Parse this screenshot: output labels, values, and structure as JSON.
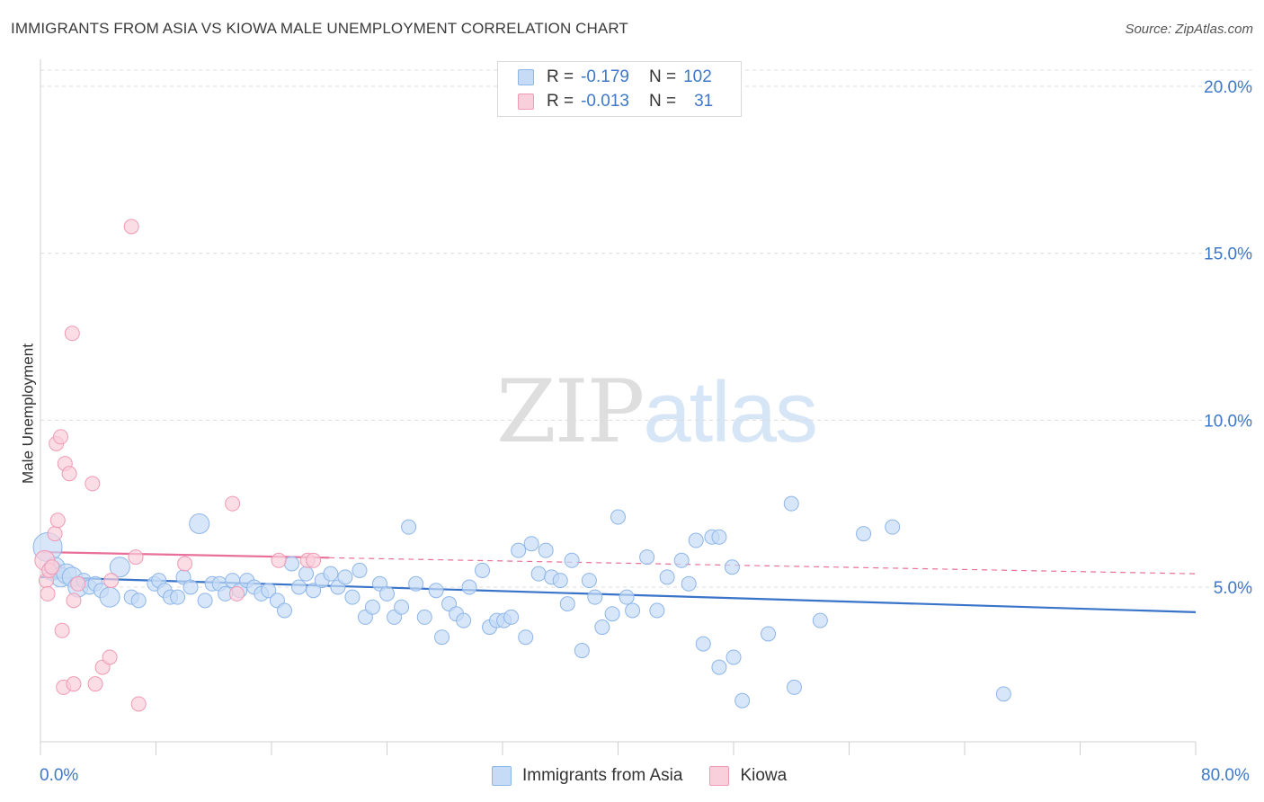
{
  "header": {
    "title": "IMMIGRANTS FROM ASIA VS KIOWA MALE UNEMPLOYMENT CORRELATION CHART",
    "source": "Source: ZipAtlas.com"
  },
  "legend_top": {
    "rows": [
      {
        "r_label": "R =",
        "r_value": "-0.179",
        "n_label": "N =",
        "n_value": "102"
      },
      {
        "r_label": "R =",
        "r_value": "-0.013",
        "n_label": "N =",
        "n_value": "31"
      }
    ]
  },
  "legend_bottom": {
    "items": [
      {
        "label": "Immigrants from Asia"
      },
      {
        "label": "Kiowa"
      }
    ]
  },
  "watermark": {
    "zip": "ZIP",
    "atlas": "atlas"
  },
  "colors": {
    "blue_fill": "#c6dbf5",
    "blue_stroke": "#8eb6ea",
    "blue_line": "#3a74c9",
    "pink_fill": "#f9cfdc",
    "pink_stroke": "#f09ab5",
    "pink_line": "#e8709a",
    "grid": "#dcdcdc",
    "tick_label": "#3e78c7"
  },
  "chart_data": {
    "type": "scatter",
    "title": "IMMIGRANTS FROM ASIA VS KIOWA MALE UNEMPLOYMENT CORRELATION CHART",
    "xlabel": "",
    "ylabel": "Male Unemployment",
    "xlim": [
      0,
      80
    ],
    "ylim": [
      0,
      20.5
    ],
    "x_tick_labels": [
      "0.0%",
      "80.0%"
    ],
    "y_ticks": [
      5,
      10,
      15,
      20
    ],
    "y_tick_labels": [
      "5.0%",
      "10.0%",
      "15.0%",
      "20.0%"
    ],
    "series": [
      {
        "name": "Immigrants from Asia",
        "color": "#8eb6ea",
        "trend": {
          "x": [
            0,
            80
          ],
          "y": [
            5.3,
            4.25
          ],
          "style": "solid"
        },
        "points": [
          {
            "x": 0.5,
            "y": 6.2,
            "s": 3
          },
          {
            "x": 0.8,
            "y": 5.5,
            "s": 2
          },
          {
            "x": 1.0,
            "y": 5.6,
            "s": 2
          },
          {
            "x": 1.4,
            "y": 5.3,
            "s": 2
          },
          {
            "x": 1.8,
            "y": 5.4,
            "s": 2
          },
          {
            "x": 2.2,
            "y": 5.3,
            "s": 2
          },
          {
            "x": 2.6,
            "y": 5.0,
            "s": 2
          },
          {
            "x": 3.0,
            "y": 5.2,
            "s": 1
          },
          {
            "x": 3.4,
            "y": 5.0,
            "s": 1
          },
          {
            "x": 3.8,
            "y": 5.1,
            "s": 1
          },
          {
            "x": 4.2,
            "y": 4.9,
            "s": 1
          },
          {
            "x": 4.8,
            "y": 4.7,
            "s": 2
          },
          {
            "x": 5.5,
            "y": 5.6,
            "s": 2
          },
          {
            "x": 6.3,
            "y": 4.7,
            "s": 1
          },
          {
            "x": 6.8,
            "y": 4.6,
            "s": 1
          },
          {
            "x": 7.9,
            "y": 5.1,
            "s": 1
          },
          {
            "x": 8.2,
            "y": 5.2,
            "s": 1
          },
          {
            "x": 8.6,
            "y": 4.9,
            "s": 1
          },
          {
            "x": 9.0,
            "y": 4.7,
            "s": 1
          },
          {
            "x": 9.5,
            "y": 4.7,
            "s": 1
          },
          {
            "x": 9.9,
            "y": 5.3,
            "s": 1
          },
          {
            "x": 10.4,
            "y": 5.0,
            "s": 1
          },
          {
            "x": 11.0,
            "y": 6.9,
            "s": 2
          },
          {
            "x": 11.4,
            "y": 4.6,
            "s": 1
          },
          {
            "x": 11.9,
            "y": 5.1,
            "s": 1
          },
          {
            "x": 12.4,
            "y": 5.1,
            "s": 1
          },
          {
            "x": 12.8,
            "y": 4.8,
            "s": 1
          },
          {
            "x": 13.3,
            "y": 5.2,
            "s": 1
          },
          {
            "x": 13.8,
            "y": 4.9,
            "s": 1
          },
          {
            "x": 14.3,
            "y": 5.2,
            "s": 1
          },
          {
            "x": 14.8,
            "y": 5.0,
            "s": 1
          },
          {
            "x": 15.3,
            "y": 4.8,
            "s": 1
          },
          {
            "x": 15.8,
            "y": 4.9,
            "s": 1
          },
          {
            "x": 16.4,
            "y": 4.6,
            "s": 1
          },
          {
            "x": 16.9,
            "y": 4.3,
            "s": 1
          },
          {
            "x": 17.4,
            "y": 5.7,
            "s": 1
          },
          {
            "x": 17.9,
            "y": 5.0,
            "s": 1
          },
          {
            "x": 18.4,
            "y": 5.4,
            "s": 1
          },
          {
            "x": 18.9,
            "y": 4.9,
            "s": 1
          },
          {
            "x": 19.5,
            "y": 5.2,
            "s": 1
          },
          {
            "x": 20.1,
            "y": 5.4,
            "s": 1
          },
          {
            "x": 20.6,
            "y": 5.0,
            "s": 1
          },
          {
            "x": 21.1,
            "y": 5.3,
            "s": 1
          },
          {
            "x": 21.6,
            "y": 4.7,
            "s": 1
          },
          {
            "x": 22.1,
            "y": 5.5,
            "s": 1
          },
          {
            "x": 22.5,
            "y": 4.1,
            "s": 1
          },
          {
            "x": 23.0,
            "y": 4.4,
            "s": 1
          },
          {
            "x": 23.5,
            "y": 5.1,
            "s": 1
          },
          {
            "x": 24.0,
            "y": 4.8,
            "s": 1
          },
          {
            "x": 24.5,
            "y": 4.1,
            "s": 1
          },
          {
            "x": 25.0,
            "y": 4.4,
            "s": 1
          },
          {
            "x": 25.5,
            "y": 6.8,
            "s": 1
          },
          {
            "x": 26.0,
            "y": 5.1,
            "s": 1
          },
          {
            "x": 26.6,
            "y": 4.1,
            "s": 1
          },
          {
            "x": 27.4,
            "y": 4.9,
            "s": 1
          },
          {
            "x": 27.8,
            "y": 3.5,
            "s": 1
          },
          {
            "x": 28.3,
            "y": 4.5,
            "s": 1
          },
          {
            "x": 28.8,
            "y": 4.2,
            "s": 1
          },
          {
            "x": 29.3,
            "y": 4.0,
            "s": 1
          },
          {
            "x": 29.7,
            "y": 5.0,
            "s": 1
          },
          {
            "x": 30.6,
            "y": 5.5,
            "s": 1
          },
          {
            "x": 31.1,
            "y": 3.8,
            "s": 1
          },
          {
            "x": 31.6,
            "y": 4.0,
            "s": 1
          },
          {
            "x": 32.1,
            "y": 4.0,
            "s": 1
          },
          {
            "x": 32.6,
            "y": 4.1,
            "s": 1
          },
          {
            "x": 33.1,
            "y": 6.1,
            "s": 1
          },
          {
            "x": 33.6,
            "y": 3.5,
            "s": 1
          },
          {
            "x": 34.0,
            "y": 6.3,
            "s": 1
          },
          {
            "x": 34.5,
            "y": 5.4,
            "s": 1
          },
          {
            "x": 35.0,
            "y": 6.1,
            "s": 1
          },
          {
            "x": 35.4,
            "y": 5.3,
            "s": 1
          },
          {
            "x": 36.0,
            "y": 5.2,
            "s": 1
          },
          {
            "x": 36.5,
            "y": 4.5,
            "s": 1
          },
          {
            "x": 36.8,
            "y": 5.8,
            "s": 1
          },
          {
            "x": 37.5,
            "y": 3.1,
            "s": 1
          },
          {
            "x": 38.0,
            "y": 5.2,
            "s": 1
          },
          {
            "x": 38.4,
            "y": 4.7,
            "s": 1
          },
          {
            "x": 38.9,
            "y": 3.8,
            "s": 1
          },
          {
            "x": 39.6,
            "y": 4.2,
            "s": 1
          },
          {
            "x": 40.0,
            "y": 7.1,
            "s": 1
          },
          {
            "x": 40.6,
            "y": 4.7,
            "s": 1
          },
          {
            "x": 41.0,
            "y": 4.3,
            "s": 1
          },
          {
            "x": 42.0,
            "y": 5.9,
            "s": 1
          },
          {
            "x": 42.7,
            "y": 4.3,
            "s": 1
          },
          {
            "x": 43.4,
            "y": 5.3,
            "s": 1
          },
          {
            "x": 44.4,
            "y": 5.8,
            "s": 1
          },
          {
            "x": 44.9,
            "y": 5.1,
            "s": 1
          },
          {
            "x": 45.4,
            "y": 6.4,
            "s": 1
          },
          {
            "x": 45.9,
            "y": 3.3,
            "s": 1
          },
          {
            "x": 46.5,
            "y": 6.5,
            "s": 1
          },
          {
            "x": 47.0,
            "y": 6.5,
            "s": 1
          },
          {
            "x": 47.9,
            "y": 5.6,
            "s": 1
          },
          {
            "x": 47.0,
            "y": 2.6,
            "s": 1
          },
          {
            "x": 48.0,
            "y": 2.9,
            "s": 1
          },
          {
            "x": 48.6,
            "y": 1.6,
            "s": 1
          },
          {
            "x": 50.4,
            "y": 3.6,
            "s": 1
          },
          {
            "x": 52.0,
            "y": 7.5,
            "s": 1
          },
          {
            "x": 52.2,
            "y": 2.0,
            "s": 1
          },
          {
            "x": 54.0,
            "y": 4.0,
            "s": 1
          },
          {
            "x": 57.0,
            "y": 6.6,
            "s": 1
          },
          {
            "x": 59.0,
            "y": 6.8,
            "s": 1
          },
          {
            "x": 66.7,
            "y": 1.8,
            "s": 1
          }
        ]
      },
      {
        "name": "Kiowa",
        "color": "#f09ab5",
        "trend": {
          "x": [
            0,
            20,
            80
          ],
          "y": [
            6.05,
            5.88,
            5.4
          ],
          "style": "solid-then-dashed",
          "solid_until": 20
        },
        "points": [
          {
            "x": 0.3,
            "y": 5.8,
            "s": 2
          },
          {
            "x": 0.4,
            "y": 5.2,
            "s": 1
          },
          {
            "x": 0.5,
            "y": 4.8,
            "s": 1
          },
          {
            "x": 0.6,
            "y": 5.5,
            "s": 1
          },
          {
            "x": 0.8,
            "y": 5.6,
            "s": 1
          },
          {
            "x": 1.0,
            "y": 6.6,
            "s": 1
          },
          {
            "x": 1.2,
            "y": 7.0,
            "s": 1
          },
          {
            "x": 1.1,
            "y": 9.3,
            "s": 1
          },
          {
            "x": 1.4,
            "y": 9.5,
            "s": 1
          },
          {
            "x": 1.5,
            "y": 3.7,
            "s": 1
          },
          {
            "x": 1.6,
            "y": 2.0,
            "s": 1
          },
          {
            "x": 1.7,
            "y": 8.7,
            "s": 1
          },
          {
            "x": 2.0,
            "y": 8.4,
            "s": 1
          },
          {
            "x": 2.2,
            "y": 12.6,
            "s": 1
          },
          {
            "x": 2.3,
            "y": 2.1,
            "s": 1
          },
          {
            "x": 2.3,
            "y": 4.6,
            "s": 1
          },
          {
            "x": 2.6,
            "y": 5.1,
            "s": 1
          },
          {
            "x": 3.6,
            "y": 8.1,
            "s": 1
          },
          {
            "x": 3.8,
            "y": 2.1,
            "s": 1
          },
          {
            "x": 4.3,
            "y": 2.6,
            "s": 1
          },
          {
            "x": 4.8,
            "y": 2.9,
            "s": 1
          },
          {
            "x": 4.9,
            "y": 5.2,
            "s": 1
          },
          {
            "x": 6.8,
            "y": 1.5,
            "s": 1
          },
          {
            "x": 6.3,
            "y": 15.8,
            "s": 1
          },
          {
            "x": 10.0,
            "y": 5.7,
            "s": 1
          },
          {
            "x": 13.3,
            "y": 7.5,
            "s": 1
          },
          {
            "x": 13.6,
            "y": 4.8,
            "s": 1
          },
          {
            "x": 16.5,
            "y": 5.8,
            "s": 1
          },
          {
            "x": 18.5,
            "y": 5.8,
            "s": 1
          },
          {
            "x": 18.9,
            "y": 5.8,
            "s": 1
          },
          {
            "x": 6.6,
            "y": 5.9,
            "s": 1
          }
        ]
      }
    ]
  }
}
